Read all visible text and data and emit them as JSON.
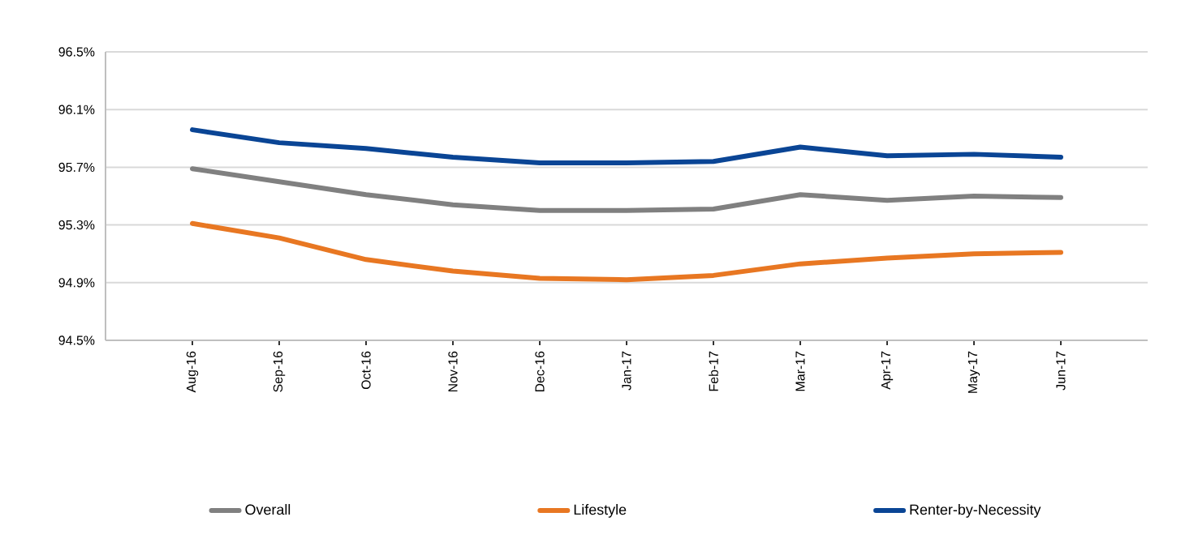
{
  "chart_data": {
    "type": "line",
    "categories": [
      "Aug-16",
      "Sep-16",
      "Oct-16",
      "Nov-16",
      "Dec-16",
      "Jan-17",
      "Feb-17",
      "Mar-17",
      "Apr-17",
      "May-17",
      "Jun-17"
    ],
    "series": [
      {
        "name": "Overall",
        "color": "#808080",
        "values": [
          95.69,
          95.6,
          95.51,
          95.44,
          95.4,
          95.4,
          95.41,
          95.51,
          95.47,
          95.5,
          95.49
        ]
      },
      {
        "name": "Lifestyle",
        "color": "#e87722",
        "values": [
          95.31,
          95.21,
          95.06,
          94.98,
          94.93,
          94.92,
          94.95,
          95.03,
          95.07,
          95.1,
          95.11
        ]
      },
      {
        "name": "Renter-by-Necessity",
        "color": "#0a4595",
        "values": [
          95.96,
          95.87,
          95.83,
          95.77,
          95.73,
          95.73,
          95.74,
          95.84,
          95.78,
          95.79,
          95.77
        ]
      }
    ],
    "ylim": [
      94.5,
      96.5
    ],
    "yticks": [
      {
        "value": 94.5,
        "label": "94.5%"
      },
      {
        "value": 94.9,
        "label": "94.9%"
      },
      {
        "value": 95.3,
        "label": "95.3%"
      },
      {
        "value": 95.7,
        "label": "95.7%"
      },
      {
        "value": 96.1,
        "label": "96.1%"
      },
      {
        "value": 96.5,
        "label": "96.5%"
      }
    ],
    "grid": "y",
    "legend": "bottom"
  }
}
